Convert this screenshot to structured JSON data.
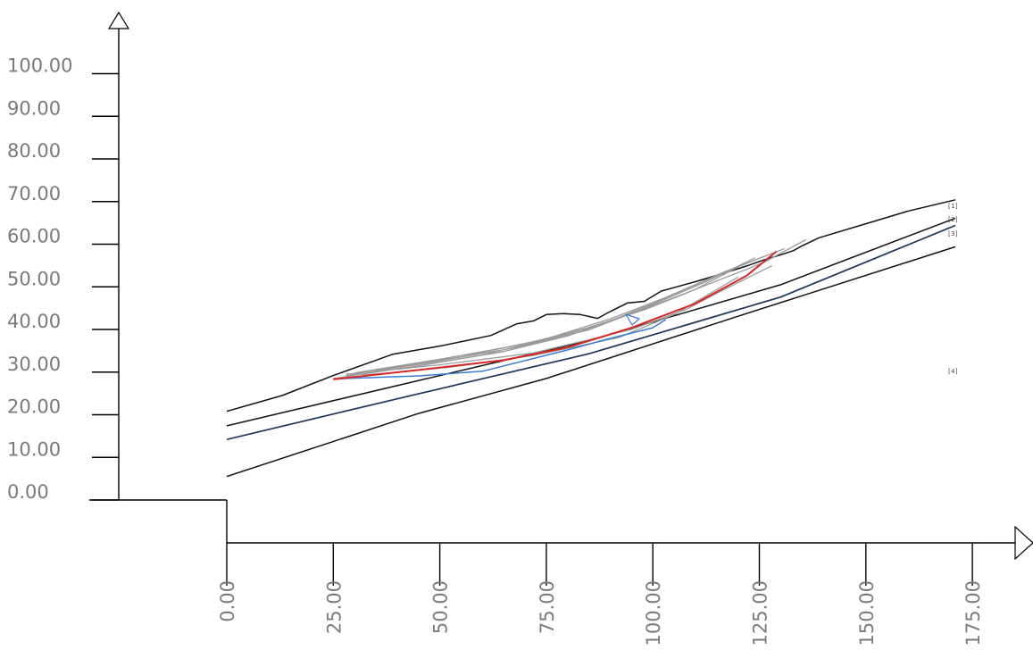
{
  "chart_data": {
    "type": "line",
    "title": "",
    "xlabel": "",
    "ylabel": "",
    "xlim": [
      0,
      175
    ],
    "ylim": [
      0,
      100
    ],
    "grid": false,
    "x_ticks": [
      "0.00",
      "25.00",
      "50.00",
      "75.00",
      "100.00",
      "125.00",
      "150.00",
      "175.00"
    ],
    "y_ticks": [
      "0.00",
      "10.00",
      "20.00",
      "30.00",
      "40.00",
      "50.00",
      "60.00",
      "70.00",
      "80.00",
      "90.00",
      "100.00"
    ],
    "layer_labels": [
      "[1]",
      "[2]",
      "[3]",
      "[4]"
    ],
    "colors": {
      "ground": "#111111",
      "boundary": "#1d3557",
      "trial": "#9a9a9a",
      "critical": "#d62828",
      "secondary": "#3a7bd5"
    },
    "series": [
      {
        "role": "ground-surface",
        "x": [
          0,
          13,
          25,
          39,
          51,
          62,
          68,
          72,
          75,
          79,
          83,
          87,
          90,
          94,
          98,
          102,
          110,
          117,
          122,
          126,
          130,
          133,
          135,
          139,
          150,
          160,
          171
        ],
        "y": [
          20.8,
          24.5,
          29.2,
          34.2,
          36.3,
          38.6,
          41.3,
          42,
          43.5,
          43.7,
          43.5,
          42.6,
          44.2,
          46.2,
          46.6,
          49,
          51.2,
          53.3,
          54.9,
          56.3,
          57.5,
          58.5,
          59.6,
          61.5,
          64.8,
          67.8,
          70.4
        ]
      },
      {
        "role": "layer-2",
        "x": [
          0,
          42,
          85,
          130,
          171
        ],
        "y": [
          17.4,
          27.3,
          37.4,
          50.5,
          66.1
        ]
      },
      {
        "role": "layer-3",
        "x": [
          0,
          42,
          85,
          130,
          171
        ],
        "y": [
          14.2,
          24.2,
          34.3,
          47.6,
          64.4
        ]
      },
      {
        "role": "layer-4",
        "x": [
          0,
          45,
          75,
          120,
          171
        ],
        "y": [
          5.5,
          20.3,
          28.5,
          43.1,
          59.4
        ]
      },
      {
        "role": "trial-surface",
        "x": [
          25,
          45,
          65,
          80,
          95,
          110,
          122
        ],
        "y": [
          28.5,
          31.5,
          34.8,
          38.5,
          43.7,
          49.4,
          55.7
        ]
      },
      {
        "role": "trial-surface",
        "x": [
          28,
          48,
          68,
          85,
          98,
          112,
          124
        ],
        "y": [
          29.2,
          32.3,
          35.8,
          39.9,
          45,
          51,
          56.8
        ]
      },
      {
        "role": "trial-surface",
        "x": [
          30,
          50,
          70,
          88,
          100,
          114,
          126
        ],
        "y": [
          29.8,
          33,
          36.6,
          41.2,
          46.1,
          52.2,
          57.1
        ]
      },
      {
        "role": "trial-surface",
        "x": [
          35,
          55,
          75,
          90,
          103,
          117,
          131
        ],
        "y": [
          30.4,
          33.6,
          37.8,
          42.5,
          47.5,
          53.6,
          59
        ]
      },
      {
        "role": "trial-surface",
        "x": [
          28,
          50,
          72,
          95,
          108,
          115,
          128
        ],
        "y": [
          29.5,
          31.7,
          34.5,
          40,
          44.8,
          48.5,
          55
        ]
      },
      {
        "role": "trial-surface",
        "x": [
          40,
          60,
          80,
          98,
          112,
          126,
          136
        ],
        "y": [
          30.6,
          34,
          38.9,
          44.6,
          50.2,
          55.7,
          61.1
        ]
      },
      {
        "role": "trial-surface",
        "x": [
          32,
          52,
          72,
          92,
          105,
          120
        ],
        "y": [
          29.3,
          31.1,
          33.9,
          38.1,
          43.5,
          52.3
        ]
      },
      {
        "role": "secondary-surface",
        "x": [
          25,
          45,
          60,
          80,
          90,
          100,
          103
        ],
        "y": [
          28.4,
          29.1,
          30.2,
          35.2,
          37.9,
          40.4,
          42.3
        ]
      },
      {
        "role": "critical-surface",
        "x": [
          25,
          45,
          65,
          80,
          95,
          110,
          122,
          129
        ],
        "y": [
          28.3,
          30.5,
          32.8,
          35.8,
          40.4,
          46.1,
          52.6,
          58.3
        ]
      }
    ]
  }
}
